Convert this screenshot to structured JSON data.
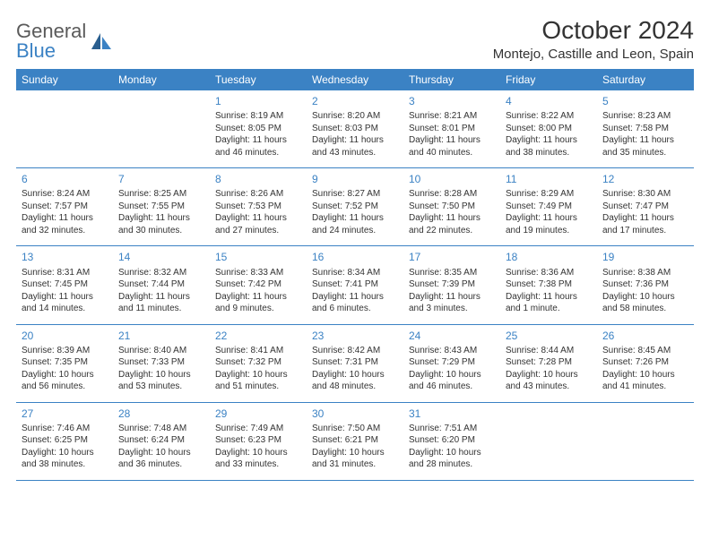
{
  "logo": {
    "general": "General",
    "blue": "Blue"
  },
  "title": "October 2024",
  "location": "Montejo, Castille and Leon, Spain",
  "colors": {
    "brand": "#3b82c4",
    "text": "#333333",
    "logo_gray": "#5a5a5a",
    "background": "#ffffff"
  },
  "day_headers": [
    "Sunday",
    "Monday",
    "Tuesday",
    "Wednesday",
    "Thursday",
    "Friday",
    "Saturday"
  ],
  "weeks": [
    [
      null,
      null,
      {
        "n": "1",
        "sr": "Sunrise: 8:19 AM",
        "ss": "Sunset: 8:05 PM",
        "d1": "Daylight: 11 hours",
        "d2": "and 46 minutes."
      },
      {
        "n": "2",
        "sr": "Sunrise: 8:20 AM",
        "ss": "Sunset: 8:03 PM",
        "d1": "Daylight: 11 hours",
        "d2": "and 43 minutes."
      },
      {
        "n": "3",
        "sr": "Sunrise: 8:21 AM",
        "ss": "Sunset: 8:01 PM",
        "d1": "Daylight: 11 hours",
        "d2": "and 40 minutes."
      },
      {
        "n": "4",
        "sr": "Sunrise: 8:22 AM",
        "ss": "Sunset: 8:00 PM",
        "d1": "Daylight: 11 hours",
        "d2": "and 38 minutes."
      },
      {
        "n": "5",
        "sr": "Sunrise: 8:23 AM",
        "ss": "Sunset: 7:58 PM",
        "d1": "Daylight: 11 hours",
        "d2": "and 35 minutes."
      }
    ],
    [
      {
        "n": "6",
        "sr": "Sunrise: 8:24 AM",
        "ss": "Sunset: 7:57 PM",
        "d1": "Daylight: 11 hours",
        "d2": "and 32 minutes."
      },
      {
        "n": "7",
        "sr": "Sunrise: 8:25 AM",
        "ss": "Sunset: 7:55 PM",
        "d1": "Daylight: 11 hours",
        "d2": "and 30 minutes."
      },
      {
        "n": "8",
        "sr": "Sunrise: 8:26 AM",
        "ss": "Sunset: 7:53 PM",
        "d1": "Daylight: 11 hours",
        "d2": "and 27 minutes."
      },
      {
        "n": "9",
        "sr": "Sunrise: 8:27 AM",
        "ss": "Sunset: 7:52 PM",
        "d1": "Daylight: 11 hours",
        "d2": "and 24 minutes."
      },
      {
        "n": "10",
        "sr": "Sunrise: 8:28 AM",
        "ss": "Sunset: 7:50 PM",
        "d1": "Daylight: 11 hours",
        "d2": "and 22 minutes."
      },
      {
        "n": "11",
        "sr": "Sunrise: 8:29 AM",
        "ss": "Sunset: 7:49 PM",
        "d1": "Daylight: 11 hours",
        "d2": "and 19 minutes."
      },
      {
        "n": "12",
        "sr": "Sunrise: 8:30 AM",
        "ss": "Sunset: 7:47 PM",
        "d1": "Daylight: 11 hours",
        "d2": "and 17 minutes."
      }
    ],
    [
      {
        "n": "13",
        "sr": "Sunrise: 8:31 AM",
        "ss": "Sunset: 7:45 PM",
        "d1": "Daylight: 11 hours",
        "d2": "and 14 minutes."
      },
      {
        "n": "14",
        "sr": "Sunrise: 8:32 AM",
        "ss": "Sunset: 7:44 PM",
        "d1": "Daylight: 11 hours",
        "d2": "and 11 minutes."
      },
      {
        "n": "15",
        "sr": "Sunrise: 8:33 AM",
        "ss": "Sunset: 7:42 PM",
        "d1": "Daylight: 11 hours",
        "d2": "and 9 minutes."
      },
      {
        "n": "16",
        "sr": "Sunrise: 8:34 AM",
        "ss": "Sunset: 7:41 PM",
        "d1": "Daylight: 11 hours",
        "d2": "and 6 minutes."
      },
      {
        "n": "17",
        "sr": "Sunrise: 8:35 AM",
        "ss": "Sunset: 7:39 PM",
        "d1": "Daylight: 11 hours",
        "d2": "and 3 minutes."
      },
      {
        "n": "18",
        "sr": "Sunrise: 8:36 AM",
        "ss": "Sunset: 7:38 PM",
        "d1": "Daylight: 11 hours",
        "d2": "and 1 minute."
      },
      {
        "n": "19",
        "sr": "Sunrise: 8:38 AM",
        "ss": "Sunset: 7:36 PM",
        "d1": "Daylight: 10 hours",
        "d2": "and 58 minutes."
      }
    ],
    [
      {
        "n": "20",
        "sr": "Sunrise: 8:39 AM",
        "ss": "Sunset: 7:35 PM",
        "d1": "Daylight: 10 hours",
        "d2": "and 56 minutes."
      },
      {
        "n": "21",
        "sr": "Sunrise: 8:40 AM",
        "ss": "Sunset: 7:33 PM",
        "d1": "Daylight: 10 hours",
        "d2": "and 53 minutes."
      },
      {
        "n": "22",
        "sr": "Sunrise: 8:41 AM",
        "ss": "Sunset: 7:32 PM",
        "d1": "Daylight: 10 hours",
        "d2": "and 51 minutes."
      },
      {
        "n": "23",
        "sr": "Sunrise: 8:42 AM",
        "ss": "Sunset: 7:31 PM",
        "d1": "Daylight: 10 hours",
        "d2": "and 48 minutes."
      },
      {
        "n": "24",
        "sr": "Sunrise: 8:43 AM",
        "ss": "Sunset: 7:29 PM",
        "d1": "Daylight: 10 hours",
        "d2": "and 46 minutes."
      },
      {
        "n": "25",
        "sr": "Sunrise: 8:44 AM",
        "ss": "Sunset: 7:28 PM",
        "d1": "Daylight: 10 hours",
        "d2": "and 43 minutes."
      },
      {
        "n": "26",
        "sr": "Sunrise: 8:45 AM",
        "ss": "Sunset: 7:26 PM",
        "d1": "Daylight: 10 hours",
        "d2": "and 41 minutes."
      }
    ],
    [
      {
        "n": "27",
        "sr": "Sunrise: 7:46 AM",
        "ss": "Sunset: 6:25 PM",
        "d1": "Daylight: 10 hours",
        "d2": "and 38 minutes."
      },
      {
        "n": "28",
        "sr": "Sunrise: 7:48 AM",
        "ss": "Sunset: 6:24 PM",
        "d1": "Daylight: 10 hours",
        "d2": "and 36 minutes."
      },
      {
        "n": "29",
        "sr": "Sunrise: 7:49 AM",
        "ss": "Sunset: 6:23 PM",
        "d1": "Daylight: 10 hours",
        "d2": "and 33 minutes."
      },
      {
        "n": "30",
        "sr": "Sunrise: 7:50 AM",
        "ss": "Sunset: 6:21 PM",
        "d1": "Daylight: 10 hours",
        "d2": "and 31 minutes."
      },
      {
        "n": "31",
        "sr": "Sunrise: 7:51 AM",
        "ss": "Sunset: 6:20 PM",
        "d1": "Daylight: 10 hours",
        "d2": "and 28 minutes."
      },
      null,
      null
    ]
  ]
}
